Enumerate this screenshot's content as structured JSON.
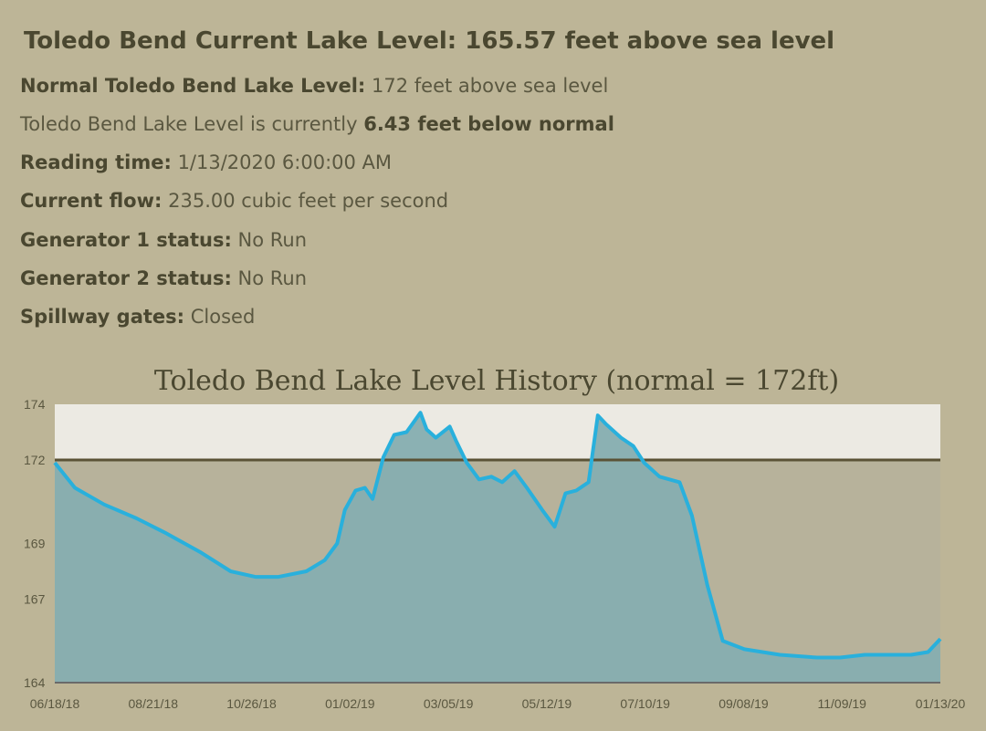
{
  "header": {
    "title": "Toledo Bend Current Lake Level: 165.57 feet above sea level"
  },
  "details": [
    {
      "label": "Normal Toledo Bend Lake Level:",
      "value": "172 feet above sea level"
    },
    {
      "label": "Reading time:",
      "value": "1/13/2020 6:00:00 AM"
    },
    {
      "label": "Current flow:",
      "value": "235.00 cubic feet per second"
    },
    {
      "label": "Generator 1 status:",
      "value": "No Run"
    },
    {
      "label": "Generator 2 status:",
      "value": "No Run"
    },
    {
      "label": "Spillway gates:",
      "value": "Closed"
    }
  ],
  "below_normal": {
    "prefix": "Toledo Bend Lake Level is currently",
    "value": "6.43 feet below normal"
  },
  "colors": {
    "background": "#bdb597",
    "line": "#29b0dc",
    "fill": "#86aeb0",
    "normal_line": "#5a5236"
  },
  "chart_data": {
    "type": "area",
    "title": "Toledo Bend Lake Level History (normal = 172ft)",
    "normal_level": 172,
    "ylim": [
      164,
      174
    ],
    "y_ticks": [
      "174",
      "172",
      "169",
      "167",
      "164"
    ],
    "y_tick_values": [
      174,
      172,
      169,
      167,
      164
    ],
    "x_ticks": [
      "06/18/18",
      "08/21/18",
      "10/26/18",
      "01/02/19",
      "03/05/19",
      "05/12/19",
      "07/10/19",
      "09/08/19",
      "11/09/19",
      "01/13/20"
    ],
    "x": [
      "2018-06-18",
      "2018-07-01",
      "2018-07-20",
      "2018-08-10",
      "2018-08-28",
      "2018-09-20",
      "2018-10-10",
      "2018-10-26",
      "2018-11-10",
      "2018-11-28",
      "2018-12-10",
      "2018-12-18",
      "2018-12-23",
      "2018-12-30",
      "2019-01-05",
      "2019-01-10",
      "2019-01-17",
      "2019-01-24",
      "2019-02-01",
      "2019-02-10",
      "2019-02-14",
      "2019-02-20",
      "2019-03-01",
      "2019-03-05",
      "2019-03-12",
      "2019-03-20",
      "2019-03-28",
      "2019-04-04",
      "2019-04-12",
      "2019-04-20",
      "2019-04-30",
      "2019-05-08",
      "2019-05-15",
      "2019-05-22",
      "2019-05-30",
      "2019-06-05",
      "2019-06-10",
      "2019-06-20",
      "2019-06-28",
      "2019-07-05",
      "2019-07-15",
      "2019-07-28",
      "2019-08-05",
      "2019-08-15",
      "2019-08-25",
      "2019-09-08",
      "2019-10-01",
      "2019-10-25",
      "2019-11-09",
      "2019-11-25",
      "2019-12-10",
      "2019-12-25",
      "2020-01-05",
      "2020-01-13"
    ],
    "y": [
      171.9,
      171.0,
      170.4,
      169.9,
      169.4,
      168.7,
      168.0,
      167.8,
      167.8,
      168.0,
      168.4,
      169.0,
      170.2,
      170.9,
      171.0,
      170.6,
      172.1,
      172.9,
      173.0,
      173.7,
      173.1,
      172.8,
      173.2,
      172.7,
      171.9,
      171.3,
      171.4,
      171.2,
      171.6,
      171.0,
      170.2,
      169.6,
      170.8,
      170.9,
      171.2,
      173.6,
      173.3,
      172.8,
      172.5,
      171.9,
      171.4,
      171.2,
      170.0,
      167.5,
      165.5,
      165.2,
      165.0,
      164.9,
      164.9,
      165.0,
      165.0,
      165.0,
      165.1,
      165.57
    ]
  }
}
